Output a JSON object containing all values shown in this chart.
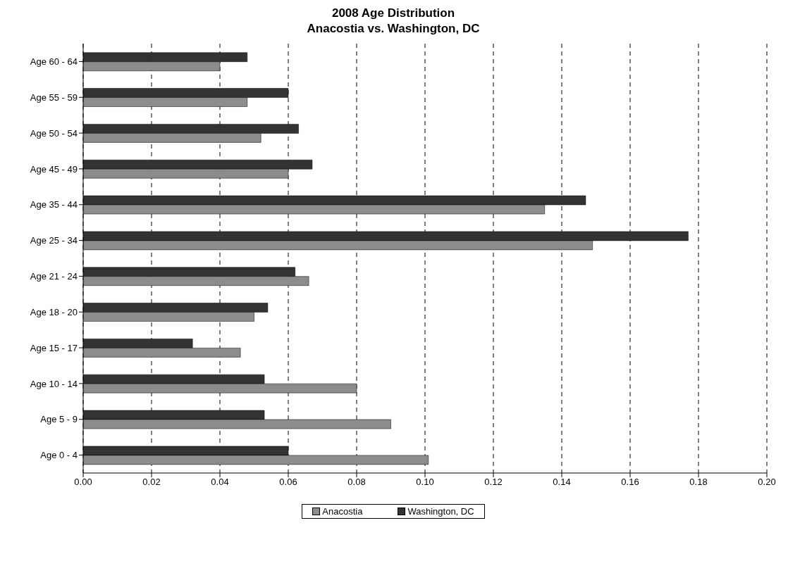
{
  "chart_data": {
    "type": "bar",
    "orientation": "horizontal",
    "title": "2008 Age Distribution",
    "subtitle": "Anacostia vs. Washington, DC",
    "categories": [
      "Age 60 - 64",
      "Age 55 - 59",
      "Age 50 - 54",
      "Age 45 - 49",
      "Age 35 - 44",
      "Age 25 - 34",
      "Age 21 - 24",
      "Age 18 - 20",
      "Age 15 - 17",
      "Age 10 - 14",
      "Age 5 - 9",
      "Age 0 - 4"
    ],
    "series": [
      {
        "name": "Anacostia",
        "color": "#8c8c8c",
        "values": [
          0.04,
          0.048,
          0.052,
          0.06,
          0.135,
          0.149,
          0.066,
          0.05,
          0.046,
          0.08,
          0.09,
          0.101
        ]
      },
      {
        "name": "Washington, DC",
        "color": "#333333",
        "values": [
          0.048,
          0.06,
          0.063,
          0.067,
          0.147,
          0.177,
          0.062,
          0.054,
          0.032,
          0.053,
          0.053,
          0.06
        ]
      }
    ],
    "xlim": [
      0,
      0.2
    ],
    "xticks": [
      {
        "value": 0,
        "label": "0.00"
      },
      {
        "value": 0.02,
        "label": "0.02"
      },
      {
        "value": 0.04,
        "label": "0.04"
      },
      {
        "value": 0.06,
        "label": "0.06"
      },
      {
        "value": 0.08,
        "label": "0.08"
      },
      {
        "value": 0.1,
        "label": "0.10"
      },
      {
        "value": 0.12,
        "label": "0.12"
      },
      {
        "value": 0.14,
        "label": "0.14"
      },
      {
        "value": 0.16,
        "label": "0.16"
      },
      {
        "value": 0.18,
        "label": "0.18"
      },
      {
        "value": 0.2,
        "label": "0.20"
      }
    ],
    "grid": "x",
    "legend": "bottom"
  }
}
